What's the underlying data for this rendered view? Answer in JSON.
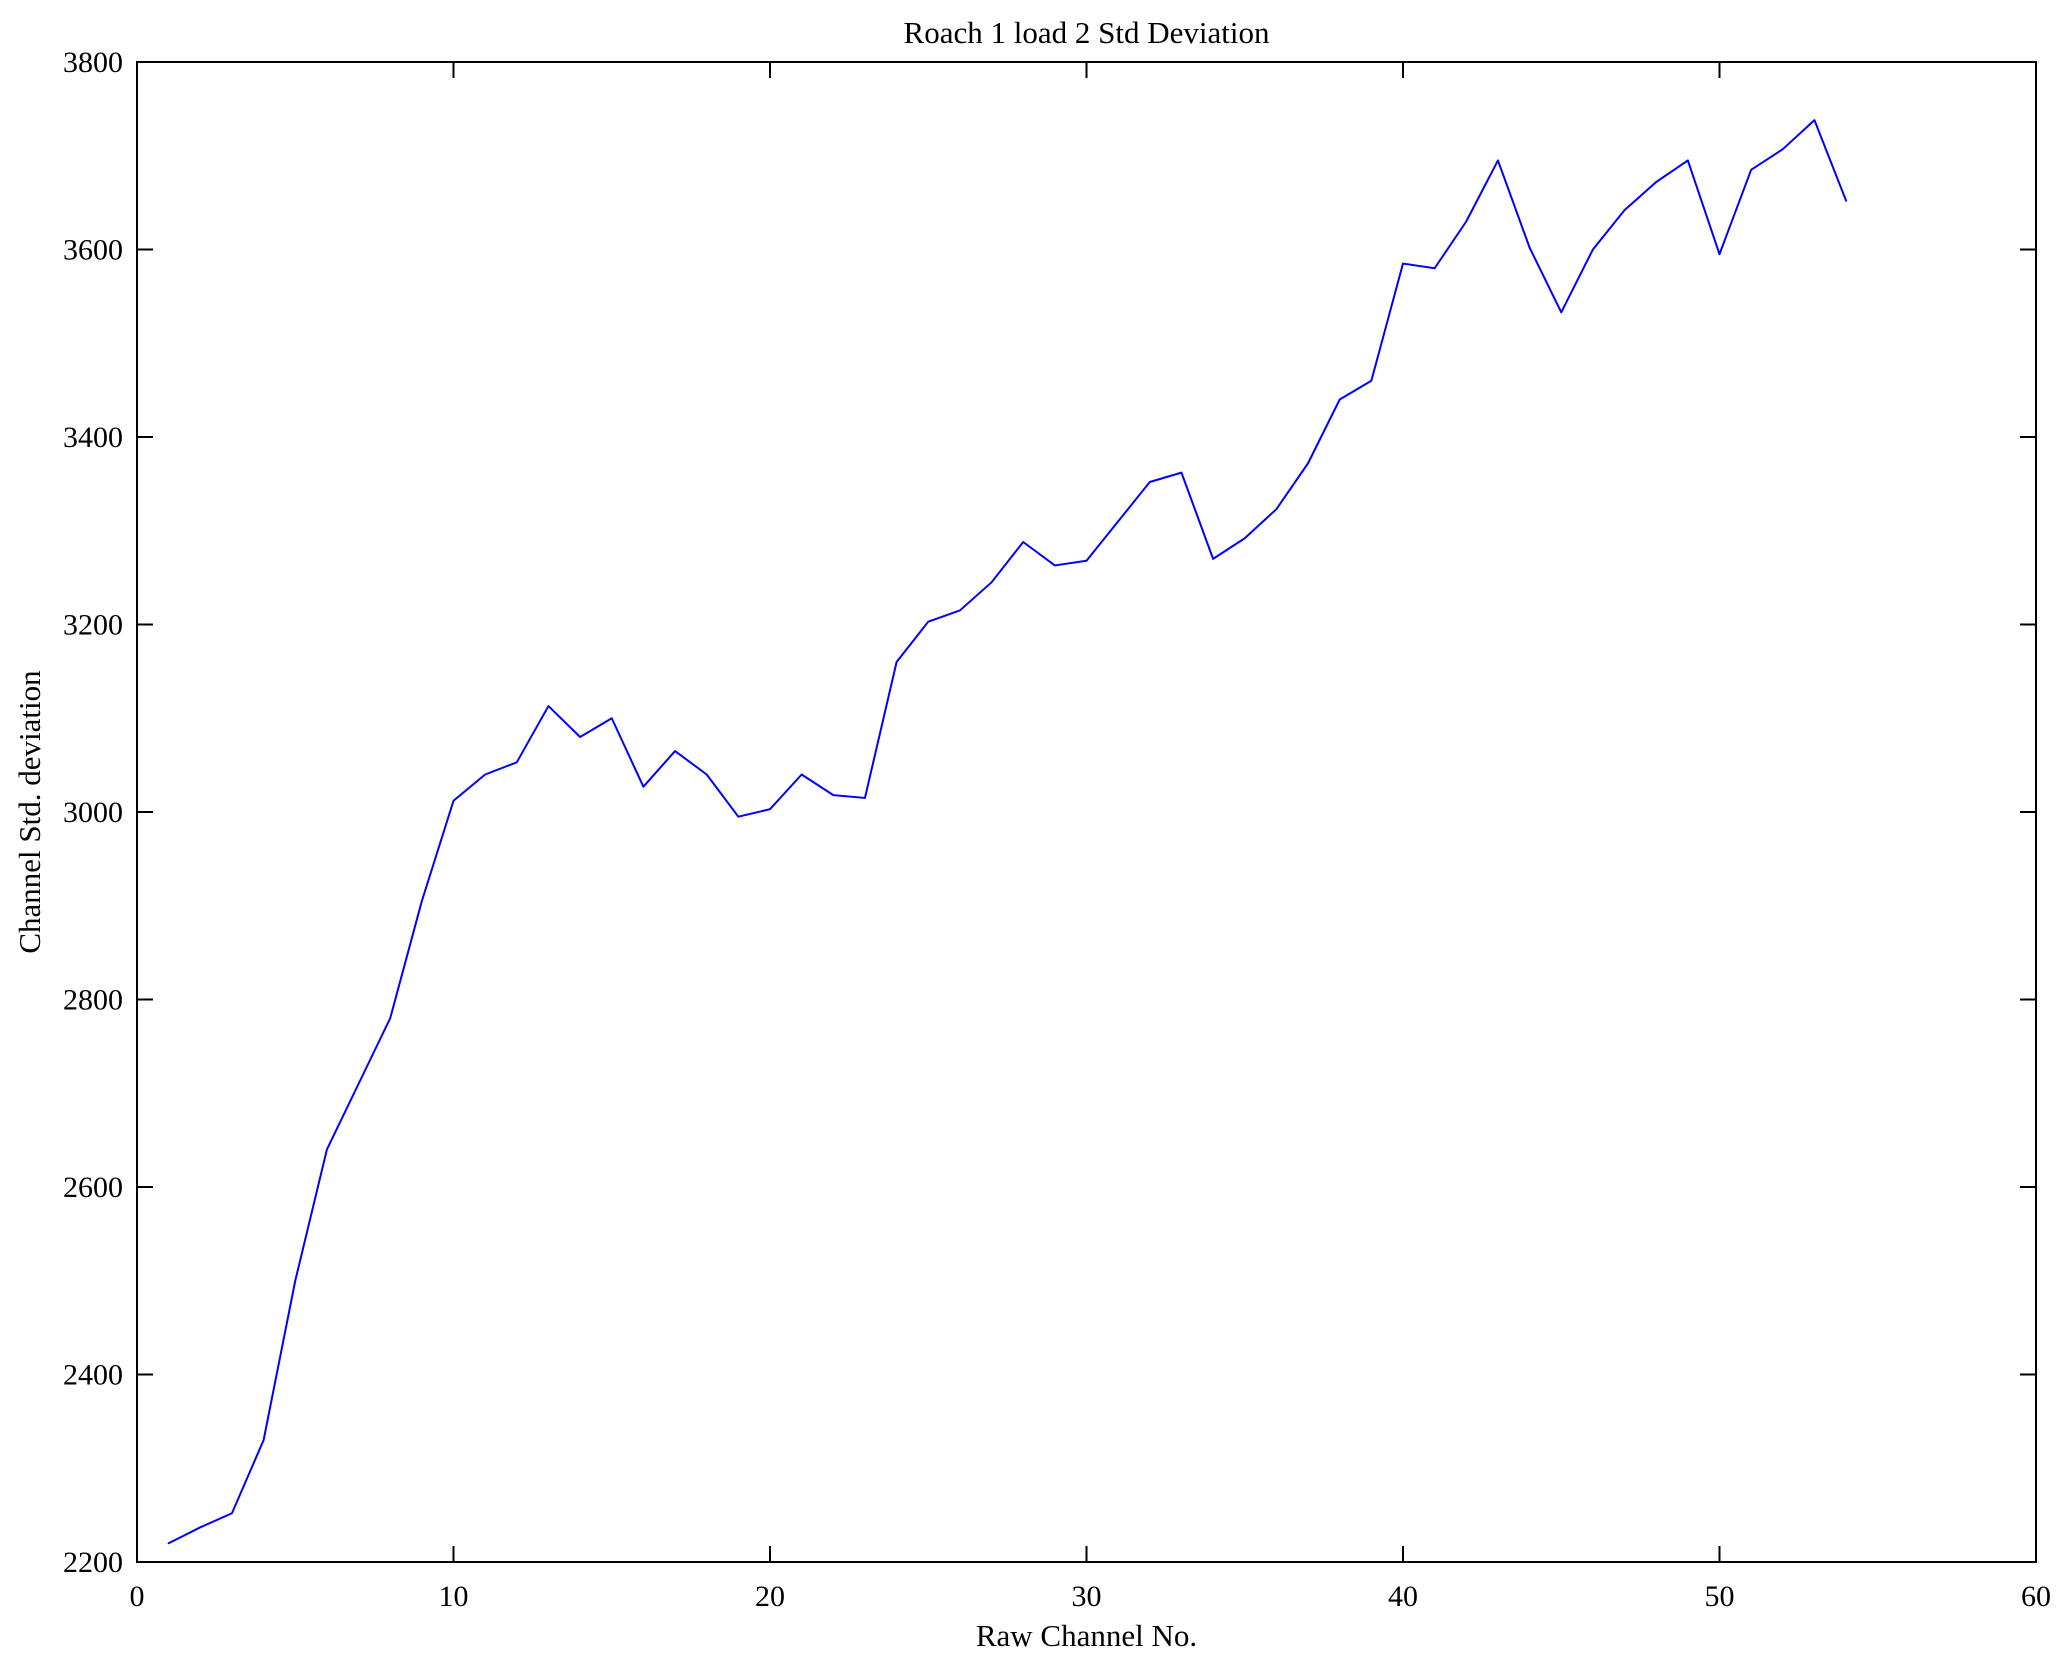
{
  "figure": {
    "background": "#ffffff",
    "axis_color": "#000000",
    "line_color": "#0000ff"
  },
  "chart_data": {
    "type": "line",
    "title": "Roach 1 load 2 Std Deviation",
    "xlabel": "Raw Channel No.",
    "ylabel": "Channel Std. deviation",
    "xlim": [
      0,
      60
    ],
    "ylim": [
      2200,
      3800
    ],
    "xticks": [
      0,
      10,
      20,
      30,
      40,
      50,
      60
    ],
    "yticks": [
      2200,
      2400,
      2600,
      2800,
      3000,
      3200,
      3400,
      3600,
      3800
    ],
    "grid": false,
    "legend_position": "none",
    "series": [
      {
        "name": "Channel Std deviation",
        "color": "#0000ff",
        "x": [
          1,
          2,
          3,
          4,
          5,
          6,
          7,
          8,
          9,
          10,
          11,
          12,
          13,
          14,
          15,
          16,
          17,
          18,
          19,
          20,
          21,
          22,
          23,
          24,
          25,
          26,
          27,
          28,
          29,
          30,
          31,
          32,
          33,
          34,
          35,
          36,
          37,
          38,
          39,
          40,
          41,
          42,
          43,
          44,
          45,
          46,
          47,
          48,
          49,
          50,
          51,
          52,
          53,
          54
        ],
        "y": [
          2220,
          2237,
          2252,
          2330,
          2500,
          2640,
          2710,
          2780,
          2905,
          3012,
          3040,
          3053,
          3113,
          3080,
          3100,
          3027,
          3065,
          3040,
          2995,
          3003,
          3040,
          3018,
          3015,
          3160,
          3203,
          3215,
          3245,
          3288,
          3263,
          3268,
          3310,
          3352,
          3362,
          3270,
          3292,
          3323,
          3372,
          3440,
          3460,
          3585,
          3580,
          3630,
          3695,
          3602,
          3533,
          3600,
          3642,
          3672,
          3695,
          3595,
          3685,
          3707,
          3738,
          3652
        ]
      }
    ]
  }
}
